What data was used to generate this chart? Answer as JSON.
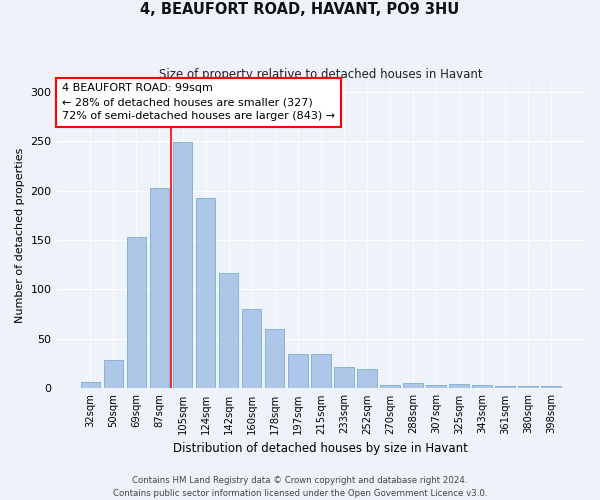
{
  "title": "4, BEAUFORT ROAD, HAVANT, PO9 3HU",
  "subtitle": "Size of property relative to detached houses in Havant",
  "xlabel": "Distribution of detached houses by size in Havant",
  "ylabel": "Number of detached properties",
  "categories": [
    "32sqm",
    "50sqm",
    "69sqm",
    "87sqm",
    "105sqm",
    "124sqm",
    "142sqm",
    "160sqm",
    "178sqm",
    "197sqm",
    "215sqm",
    "233sqm",
    "252sqm",
    "270sqm",
    "288sqm",
    "307sqm",
    "325sqm",
    "343sqm",
    "361sqm",
    "380sqm",
    "398sqm"
  ],
  "values": [
    6,
    29,
    153,
    203,
    249,
    192,
    117,
    80,
    60,
    35,
    35,
    22,
    20,
    3,
    5,
    3,
    4,
    3,
    2,
    2,
    2
  ],
  "bar_color": "#aec6e8",
  "bar_edgecolor": "#7aadd4",
  "red_line_index": 4,
  "annotation_text": "4 BEAUFORT ROAD: 99sqm\n← 28% of detached houses are smaller (327)\n72% of semi-detached houses are larger (843) →",
  "annotation_box_color": "white",
  "annotation_box_edgecolor": "red",
  "ylim": [
    0,
    310
  ],
  "background_color": "#eef2f9",
  "grid_color": "white",
  "footer_line1": "Contains HM Land Registry data © Crown copyright and database right 2024.",
  "footer_line2": "Contains public sector information licensed under the Open Government Licence v3.0."
}
